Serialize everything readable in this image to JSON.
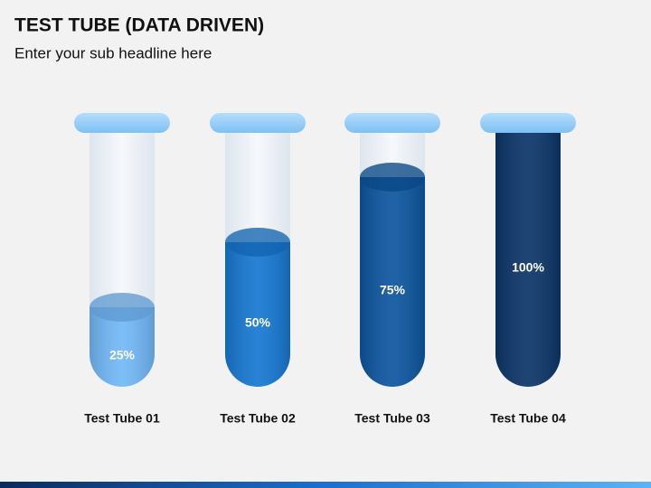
{
  "chart_data": {
    "type": "tube",
    "title": "TEST TUBE (DATA DRIVEN)",
    "subtitle": "Enter your sub headline here",
    "categories": [
      "Test Tube 01",
      "Test Tube 02",
      "Test Tube 03",
      "Test Tube 04"
    ],
    "values": [
      25,
      50,
      75,
      100
    ],
    "value_labels": [
      "25%",
      "50%",
      "75%",
      "100%"
    ],
    "colors": [
      "#72b8f8",
      "#1677d2",
      "#0c559f",
      "#0b3468"
    ],
    "ylim": [
      0,
      100
    ]
  }
}
